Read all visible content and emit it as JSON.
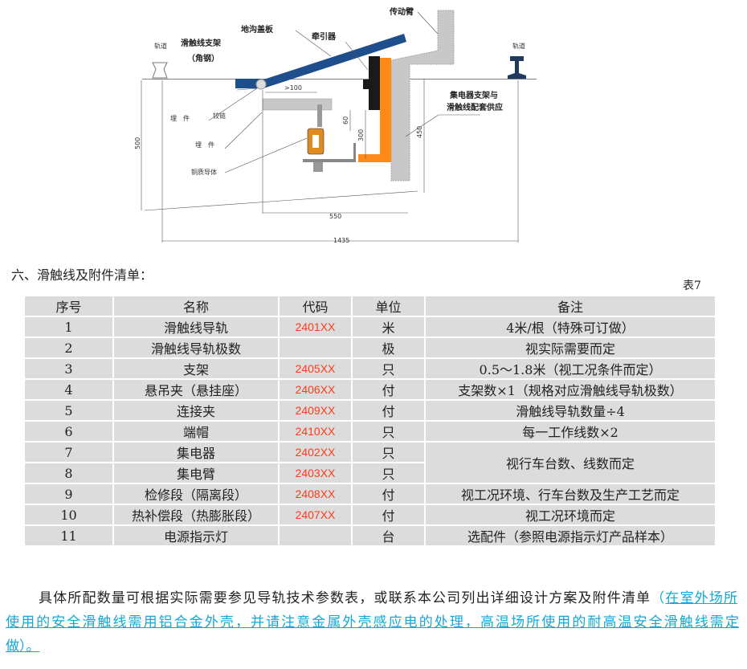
{
  "diagram": {
    "labels": {
      "rail_left": "轨道",
      "rail_right": "轨道",
      "bracket": "滑触线支架",
      "bracket_sub": "（角钢）",
      "cover": "地沟盖板",
      "tractor": "牵引器",
      "arm": "传动臂",
      "collector_line1": "集电器支架与",
      "collector_line2": "滑触线配套供应",
      "embed1": "埋　件",
      "hinge": "铰链",
      "embed2": "埋　件",
      "conductor": "铜质导体"
    },
    "dimensions": {
      "gap": ">100",
      "d60": "60",
      "d300": "300",
      "d450": "450",
      "d500": "500",
      "d550": "550",
      "d1435": "1435"
    },
    "colors": {
      "cover": "#1f4e8c",
      "orange": "#ff8a1a",
      "gray": "#c8c8c8",
      "brush": "#1a1a1a"
    }
  },
  "section_title": "六、滑触线及附件清单：",
  "table_label": "表7",
  "table": {
    "headers": [
      "序号",
      "名称",
      "代码",
      "单位",
      "备注"
    ],
    "rows": [
      [
        "1",
        "滑触线导轨",
        "2401XX",
        "米",
        "4米/根（特殊可订做）"
      ],
      [
        "2",
        "滑触线导轨极数",
        "",
        "极",
        "视实际需要而定"
      ],
      [
        "3",
        "支架",
        "2405XX",
        "只",
        "0.5～1.8米（视工况条件而定）"
      ],
      [
        "4",
        "悬吊夹（悬挂座）",
        "2406XX",
        "付",
        "支架数×1（规格对应滑触线导轨极数）"
      ],
      [
        "5",
        "连接夹",
        "2409XX",
        "付",
        "滑触线导轨数量÷4"
      ],
      [
        "6",
        "端帽",
        "2410XX",
        "只",
        "每一工作线数×2"
      ],
      [
        "7",
        "集电器",
        "2402XX",
        "只",
        "视行车台数、线数而定"
      ],
      [
        "8",
        "集电臂",
        "2403XX",
        "只",
        ""
      ],
      [
        "9",
        "检修段（隔离段）",
        "2408XX",
        "付",
        "视工况环境、行车台数及生产工艺而定"
      ],
      [
        "10",
        "热补偿段（热膨胀段）",
        "2407XX",
        "付",
        "视工况环境而定"
      ],
      [
        "11",
        "电源指示灯",
        "",
        "台",
        "选配件（参照电源指示灯产品样本）"
      ]
    ],
    "code_color": "#ff3a1a"
  },
  "note": {
    "line1_plain": "具体所配数量可根据实际需要参见导轨技术参数表，或联系本公司列出详细设计方案及附件清单",
    "line1_paren": "（",
    "line1_link": "在室外场所",
    "line2_link": "使用的安全滑触线需用铝合金外壳，并请注意金属外壳感应电的处理，高温场所使用的耐高温安全滑触线需定",
    "line3_link": "做）。",
    "link_color": "#10a8d8"
  }
}
